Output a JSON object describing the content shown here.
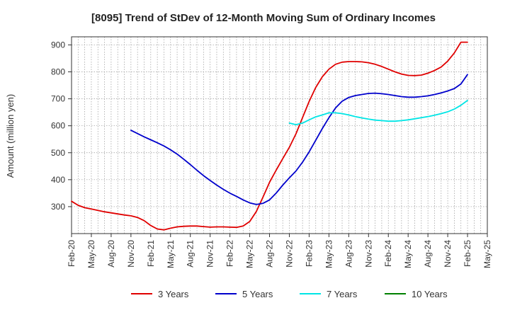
{
  "chart_data": {
    "type": "line",
    "title": "[8095]  Trend of StDev of 12-Month Moving Sum of Ordinary Incomes",
    "ylabel": "Amount (million yen)",
    "xlabel": "",
    "ylim": [
      200,
      930
    ],
    "yticks": [
      300,
      400,
      500,
      600,
      700,
      800,
      900
    ],
    "x_start": "2020-02",
    "x_end": "2025-05",
    "xticks": [
      "Feb-20",
      "May-20",
      "Aug-20",
      "Nov-20",
      "Feb-21",
      "May-21",
      "Aug-21",
      "Nov-21",
      "Feb-22",
      "May-22",
      "Aug-22",
      "Nov-22",
      "Feb-23",
      "May-23",
      "Aug-23",
      "Nov-23",
      "Feb-24",
      "May-24",
      "Aug-24",
      "Nov-24",
      "Feb-25",
      "May-25"
    ],
    "grid": true,
    "legend_position": "bottom",
    "series": [
      {
        "name": "3 Years",
        "color": "#e00000",
        "x": [
          "2020-02",
          "2020-03",
          "2020-04",
          "2020-05",
          "2020-06",
          "2020-07",
          "2020-08",
          "2020-09",
          "2020-10",
          "2020-11",
          "2020-12",
          "2021-01",
          "2021-02",
          "2021-03",
          "2021-04",
          "2021-05",
          "2021-06",
          "2021-07",
          "2021-08",
          "2021-09",
          "2021-10",
          "2021-11",
          "2021-12",
          "2022-01",
          "2022-02",
          "2022-03",
          "2022-04",
          "2022-05",
          "2022-06",
          "2022-07",
          "2022-08",
          "2022-09",
          "2022-10",
          "2022-11",
          "2022-12",
          "2023-01",
          "2023-02",
          "2023-03",
          "2023-04",
          "2023-05",
          "2023-06",
          "2023-07",
          "2023-08",
          "2023-09",
          "2023-10",
          "2023-11",
          "2023-12",
          "2024-01",
          "2024-02",
          "2024-03",
          "2024-04",
          "2024-05",
          "2024-06",
          "2024-07",
          "2024-08",
          "2024-09",
          "2024-10",
          "2024-11",
          "2024-12",
          "2025-01",
          "2025-02"
        ],
        "values": [
          320,
          305,
          296,
          291,
          286,
          281,
          277,
          273,
          269,
          266,
          260,
          248,
          230,
          217,
          214,
          220,
          225,
          227,
          228,
          228,
          226,
          224,
          225,
          225,
          224,
          223,
          228,
          245,
          282,
          335,
          390,
          435,
          478,
          520,
          570,
          630,
          690,
          742,
          782,
          810,
          828,
          836,
          838,
          838,
          837,
          834,
          828,
          820,
          810,
          800,
          792,
          787,
          786,
          788,
          795,
          805,
          818,
          840,
          870,
          910,
          910
        ],
        "_x_note": "last point at Feb-25"
      },
      {
        "name": "5 Years",
        "color": "#0000cc",
        "x": [
          "2020-11",
          "2020-12",
          "2021-01",
          "2021-02",
          "2021-03",
          "2021-04",
          "2021-05",
          "2021-06",
          "2021-07",
          "2021-08",
          "2021-09",
          "2021-10",
          "2021-11",
          "2021-12",
          "2022-01",
          "2022-02",
          "2022-03",
          "2022-04",
          "2022-05",
          "2022-06",
          "2022-07",
          "2022-08",
          "2022-09",
          "2022-10",
          "2022-11",
          "2022-12",
          "2023-01",
          "2023-02",
          "2023-03",
          "2023-04",
          "2023-05",
          "2023-06",
          "2023-07",
          "2023-08",
          "2023-09",
          "2023-10",
          "2023-11",
          "2023-12",
          "2024-01",
          "2024-02",
          "2024-03",
          "2024-04",
          "2024-05",
          "2024-06",
          "2024-07",
          "2024-08",
          "2024-09",
          "2024-10",
          "2024-11",
          "2024-12",
          "2025-01",
          "2025-02"
        ],
        "values": [
          583,
          571,
          559,
          548,
          537,
          525,
          511,
          495,
          476,
          456,
          435,
          415,
          397,
          380,
          364,
          350,
          338,
          325,
          314,
          308,
          312,
          325,
          350,
          380,
          407,
          432,
          465,
          503,
          546,
          590,
          630,
          666,
          691,
          705,
          712,
          716,
          720,
          721,
          719,
          716,
          712,
          708,
          706,
          706,
          708,
          711,
          716,
          722,
          729,
          738,
          755,
          790
        ]
      },
      {
        "name": "7 Years",
        "color": "#00e5e5",
        "x": [
          "2022-11",
          "2022-12",
          "2023-01",
          "2023-02",
          "2023-03",
          "2023-04",
          "2023-05",
          "2023-06",
          "2023-07",
          "2023-08",
          "2023-09",
          "2023-10",
          "2023-11",
          "2023-12",
          "2024-01",
          "2024-02",
          "2024-03",
          "2024-04",
          "2024-05",
          "2024-06",
          "2024-07",
          "2024-08",
          "2024-09",
          "2024-10",
          "2024-11",
          "2024-12",
          "2025-01",
          "2025-02"
        ],
        "values": [
          610,
          604,
          610,
          622,
          633,
          640,
          648,
          648,
          645,
          640,
          634,
          629,
          625,
          621,
          619,
          617,
          617,
          619,
          622,
          626,
          630,
          634,
          639,
          645,
          652,
          662,
          676,
          694
        ]
      },
      {
        "name": "10 Years",
        "color": "#008000",
        "x": [],
        "values": []
      }
    ]
  }
}
